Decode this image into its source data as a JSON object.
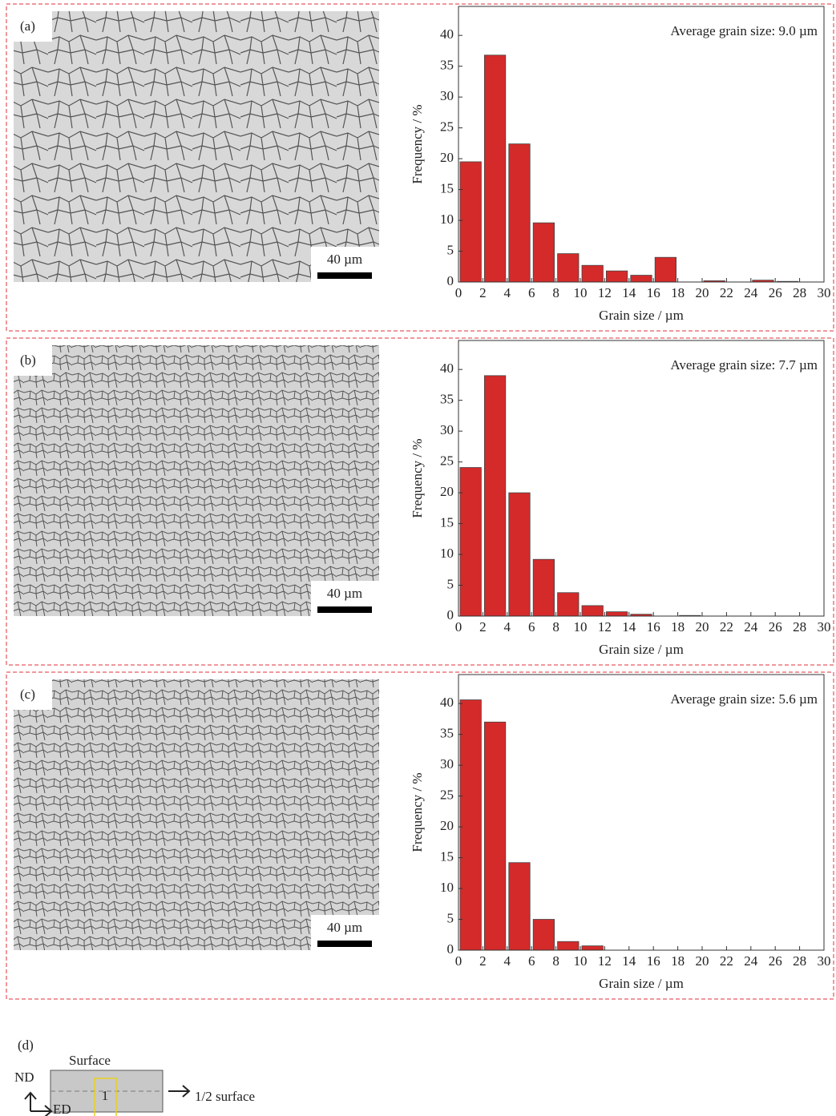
{
  "chart_data": [
    {
      "type": "histogram",
      "annotation": "Average grain size: 9.0 µm",
      "xlabel": "Grain size / µm",
      "ylabel": "Frequency / %",
      "color": "#d42a2a",
      "bins": [
        0,
        2,
        4,
        6,
        8,
        10,
        12,
        14,
        16,
        18,
        20,
        22,
        24,
        26,
        28,
        30
      ],
      "values": [
        19.5,
        36.8,
        22.4,
        9.6,
        4.6,
        2.7,
        1.8,
        1.1,
        4.0,
        0,
        0.2,
        0,
        0.3,
        0.1,
        0
      ],
      "xlim": [
        0,
        30
      ],
      "ylim": [
        0,
        44.7
      ],
      "xticks": [
        0,
        2,
        4,
        6,
        8,
        10,
        12,
        14,
        16,
        18,
        20,
        22,
        24,
        26,
        28,
        30
      ],
      "yticks": [
        0,
        5,
        10,
        15,
        20,
        25,
        30,
        35,
        40
      ]
    },
    {
      "type": "histogram",
      "annotation": "Average grain size: 7.7 µm",
      "xlabel": "Grain size / µm",
      "ylabel": "Frequency / %",
      "color": "#d42a2a",
      "bins": [
        0,
        2,
        4,
        6,
        8,
        10,
        12,
        14,
        16,
        18,
        20,
        22,
        24,
        26,
        28,
        30
      ],
      "values": [
        24.1,
        39.0,
        20.0,
        9.2,
        3.8,
        1.7,
        0.7,
        0.3,
        0,
        0.1,
        0,
        0,
        0,
        0,
        0
      ],
      "xlim": [
        0,
        30
      ],
      "ylim": [
        0,
        44.7
      ],
      "xticks": [
        0,
        2,
        4,
        6,
        8,
        10,
        12,
        14,
        16,
        18,
        20,
        22,
        24,
        26,
        28,
        30
      ],
      "yticks": [
        0,
        5,
        10,
        15,
        20,
        25,
        30,
        35,
        40
      ]
    },
    {
      "type": "histogram",
      "annotation": "Average grain size: 5.6 µm",
      "xlabel": "Grain size / µm",
      "ylabel": "Frequency / %",
      "color": "#d42a2a",
      "bins": [
        0,
        2,
        4,
        6,
        8,
        10,
        12,
        14,
        16,
        18,
        20,
        22,
        24,
        26,
        28,
        30
      ],
      "values": [
        40.6,
        37.0,
        14.2,
        5.0,
        1.4,
        0.7,
        0,
        0,
        0,
        0,
        0,
        0,
        0,
        0,
        0
      ],
      "xlim": [
        0,
        30
      ],
      "ylim": [
        0,
        44.7
      ],
      "xticks": [
        0,
        2,
        4,
        6,
        8,
        10,
        12,
        14,
        16,
        18,
        20,
        22,
        24,
        26,
        28,
        30
      ],
      "yticks": [
        0,
        5,
        10,
        15,
        20,
        25,
        30,
        35,
        40
      ]
    }
  ],
  "panels": [
    {
      "label": "(a)",
      "scale_bar": "40 µm"
    },
    {
      "label": "(b)",
      "scale_bar": "40 µm"
    },
    {
      "label": "(c)",
      "scale_bar": "40 µm"
    }
  ],
  "diagram": {
    "label": "(d)",
    "surface": "Surface",
    "nd": "ND",
    "ed": "ED",
    "region": "1",
    "mid": "1/2 surface"
  }
}
